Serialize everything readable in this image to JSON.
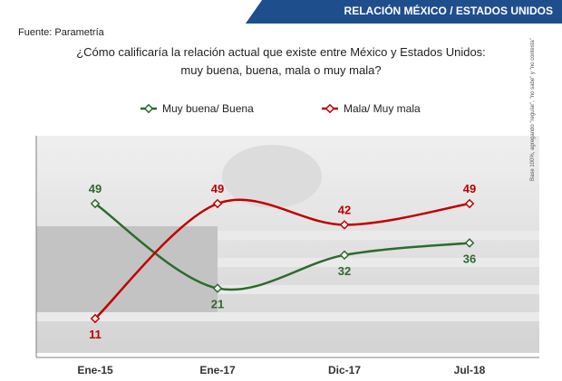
{
  "header": {
    "banner_title": "RELACIÓN MÉXICO / ESTADOS UNIDOS"
  },
  "source": "Fuente: Parametría",
  "question": {
    "line1": "¿Cómo calificaría la relación actual que existe entre México y Estados Unidos:",
    "line2": "muy buena, buena, mala o muy mala?"
  },
  "side_note": "Base 100%, agregando \"regular\", \"no sabe\" y \"no contesta\"",
  "colors": {
    "green": "#2d6a2d",
    "red": "#c00000",
    "banner": "#1f4e8c"
  },
  "chart_data": {
    "type": "line",
    "categories": [
      "Ene-15",
      "Ene-17",
      "Dic-17",
      "Jul-18"
    ],
    "series": [
      {
        "name": "Muy buena/ Buena",
        "values": [
          49,
          21,
          32,
          36
        ],
        "color": "#2d6a2d"
      },
      {
        "name": "Mala/ Muy mala",
        "values": [
          11,
          49,
          42,
          49
        ],
        "color": "#c00000"
      }
    ],
    "legend_position": "top-center",
    "grid": false
  }
}
